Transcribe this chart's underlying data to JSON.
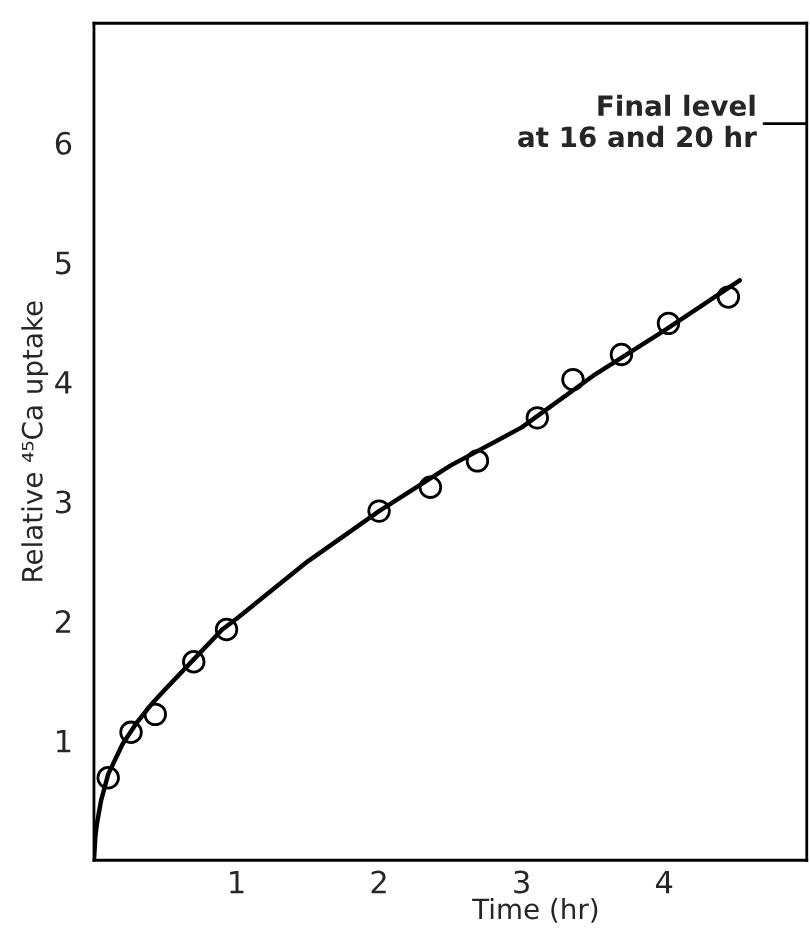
{
  "chart_data": {
    "type": "scatter",
    "xlabel": "Time (hr)",
    "ylabel": "Relative ⁴⁵Ca uptake",
    "xlim": [
      0,
      5
    ],
    "ylim": [
      0,
      7
    ],
    "xticks": [
      1,
      2,
      3,
      4
    ],
    "yticks": [
      1,
      2,
      3,
      4,
      5,
      6
    ],
    "grid": false,
    "legend": false,
    "series": [
      {
        "color": "#000000",
        "marker": "circle",
        "x": [
          0.1,
          0.26,
          0.43,
          0.7,
          0.93,
          2.0,
          2.36,
          2.69,
          3.11,
          3.36,
          3.7,
          4.03,
          4.45
        ],
        "values": [
          0.69,
          1.07,
          1.22,
          1.66,
          1.93,
          2.92,
          3.12,
          3.34,
          3.7,
          4.02,
          4.23,
          4.49,
          4.71
        ]
      },
      {
        "type": "line",
        "color": "#000000",
        "line_style": "solid",
        "x": [
          0,
          0.01,
          0.02,
          0.05,
          0.1,
          0.2,
          0.3,
          0.4,
          0.5,
          0.7,
          0.9,
          1.0,
          1.5,
          2.0,
          2.5,
          3.0,
          3.5,
          4.0,
          4.53
        ],
        "values": [
          0,
          0.2,
          0.3,
          0.5,
          0.72,
          0.97,
          1.15,
          1.3,
          1.43,
          1.68,
          1.93,
          2.02,
          2.5,
          2.92,
          3.3,
          3.62,
          4.05,
          4.43,
          4.85
        ]
      }
    ],
    "ref_lines": [
      {
        "axis": "y",
        "value": 6.16,
        "label": "Final level\nat 16 and 20 hr",
        "color": "#000000",
        "line_style": "solid"
      }
    ]
  }
}
